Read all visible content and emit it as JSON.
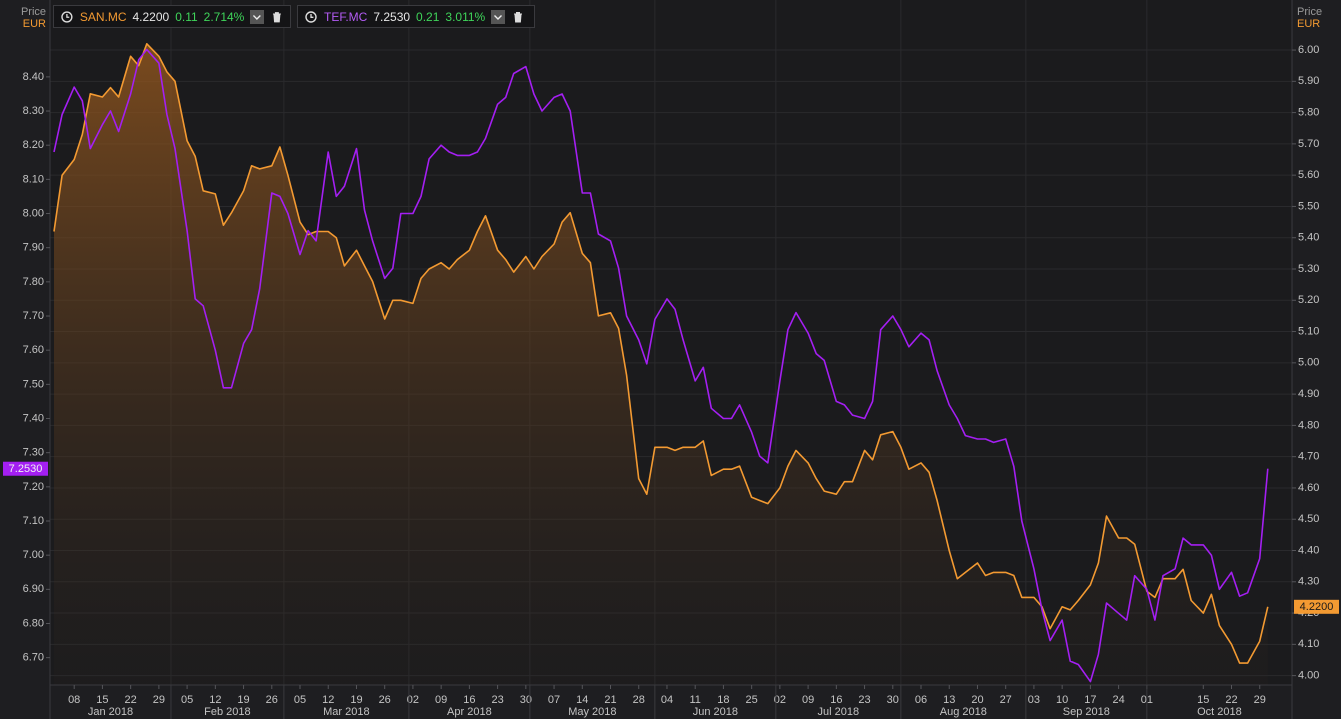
{
  "chart_data": {
    "type": "line",
    "y_label": "Price",
    "y_unit": "EUR",
    "xlim": [
      "2018-01-02",
      "2018-11-06"
    ],
    "ylim": [
      6.62,
      8.625
    ],
    "y2lim": [
      3.97,
      6.16
    ],
    "grid": true,
    "yticks": [
      {
        "value": 6.7,
        "label": "6.70"
      },
      {
        "value": 6.8,
        "label": "6.80"
      },
      {
        "value": 6.9,
        "label": "6.90"
      },
      {
        "value": 7.0,
        "label": "7.00"
      },
      {
        "value": 7.1,
        "label": "7.10"
      },
      {
        "value": 7.2,
        "label": "7.20"
      },
      {
        "value": 7.3,
        "label": "7.30"
      },
      {
        "value": 7.4,
        "label": "7.40"
      },
      {
        "value": 7.5,
        "label": "7.50"
      },
      {
        "value": 7.6,
        "label": "7.60"
      },
      {
        "value": 7.7,
        "label": "7.70"
      },
      {
        "value": 7.8,
        "label": "7.80"
      },
      {
        "value": 7.9,
        "label": "7.90"
      },
      {
        "value": 8.0,
        "label": "8.00"
      },
      {
        "value": 8.1,
        "label": "8.10"
      },
      {
        "value": 8.2,
        "label": "8.20"
      },
      {
        "value": 8.3,
        "label": "8.30"
      },
      {
        "value": 8.4,
        "label": "8.40"
      }
    ],
    "y2ticks": [
      {
        "value": 4.0,
        "label": "4.00"
      },
      {
        "value": 4.1,
        "label": "4.10"
      },
      {
        "value": 4.2,
        "label": "4.20"
      },
      {
        "value": 4.3,
        "label": "4.30"
      },
      {
        "value": 4.4,
        "label": "4.40"
      },
      {
        "value": 4.5,
        "label": "4.50"
      },
      {
        "value": 4.6,
        "label": "4.60"
      },
      {
        "value": 4.7,
        "label": "4.70"
      },
      {
        "value": 4.8,
        "label": "4.80"
      },
      {
        "value": 4.9,
        "label": "4.90"
      },
      {
        "value": 5.0,
        "label": "5.00"
      },
      {
        "value": 5.1,
        "label": "5.10"
      },
      {
        "value": 5.2,
        "label": "5.20"
      },
      {
        "value": 5.3,
        "label": "5.30"
      },
      {
        "value": 5.4,
        "label": "5.40"
      },
      {
        "value": 5.5,
        "label": "5.50"
      },
      {
        "value": 5.6,
        "label": "5.60"
      },
      {
        "value": 5.7,
        "label": "5.70"
      },
      {
        "value": 5.8,
        "label": "5.80"
      },
      {
        "value": 5.9,
        "label": "5.90"
      },
      {
        "value": 6.0,
        "label": "6.00"
      }
    ],
    "xticks": [
      {
        "value": "2018-01-08",
        "label": "08"
      },
      {
        "value": "2018-01-15",
        "label": "15"
      },
      {
        "value": "2018-01-22",
        "label": "22"
      },
      {
        "value": "2018-01-29",
        "label": "29"
      },
      {
        "value": "2018-02-05",
        "label": "05"
      },
      {
        "value": "2018-02-12",
        "label": "12"
      },
      {
        "value": "2018-02-19",
        "label": "19"
      },
      {
        "value": "2018-02-26",
        "label": "26"
      },
      {
        "value": "2018-03-05",
        "label": "05"
      },
      {
        "value": "2018-03-12",
        "label": "12"
      },
      {
        "value": "2018-03-19",
        "label": "19"
      },
      {
        "value": "2018-03-26",
        "label": "26"
      },
      {
        "value": "2018-04-02",
        "label": "02"
      },
      {
        "value": "2018-04-09",
        "label": "09"
      },
      {
        "value": "2018-04-16",
        "label": "16"
      },
      {
        "value": "2018-04-23",
        "label": "23"
      },
      {
        "value": "2018-04-30",
        "label": "30"
      },
      {
        "value": "2018-05-07",
        "label": "07"
      },
      {
        "value": "2018-05-14",
        "label": "14"
      },
      {
        "value": "2018-05-21",
        "label": "21"
      },
      {
        "value": "2018-05-28",
        "label": "28"
      },
      {
        "value": "2018-06-04",
        "label": "04"
      },
      {
        "value": "2018-06-11",
        "label": "11"
      },
      {
        "value": "2018-06-18",
        "label": "18"
      },
      {
        "value": "2018-06-25",
        "label": "25"
      },
      {
        "value": "2018-07-02",
        "label": "02"
      },
      {
        "value": "2018-07-09",
        "label": "09"
      },
      {
        "value": "2018-07-16",
        "label": "16"
      },
      {
        "value": "2018-07-23",
        "label": "23"
      },
      {
        "value": "2018-07-30",
        "label": "30"
      },
      {
        "value": "2018-08-06",
        "label": "06"
      },
      {
        "value": "2018-08-13",
        "label": "13"
      },
      {
        "value": "2018-08-20",
        "label": "20"
      },
      {
        "value": "2018-08-27",
        "label": "27"
      },
      {
        "value": "2018-09-03",
        "label": "03"
      },
      {
        "value": "2018-09-10",
        "label": "10"
      },
      {
        "value": "2018-09-17",
        "label": "17"
      },
      {
        "value": "2018-09-24",
        "label": "24"
      },
      {
        "value": "2018-10-01",
        "label": "01"
      },
      {
        "value": "2018-10-15",
        "label": "15"
      },
      {
        "value": "2018-10-22",
        "label": "22"
      },
      {
        "value": "2018-10-29",
        "label": "29"
      }
    ],
    "months": [
      {
        "value": "2018-01-01",
        "label": "Jan 2018"
      },
      {
        "value": "2018-02-01",
        "label": "Feb 2018"
      },
      {
        "value": "2018-03-01",
        "label": "Mar 2018"
      },
      {
        "value": "2018-04-01",
        "label": "Apr 2018"
      },
      {
        "value": "2018-05-01",
        "label": "May 2018"
      },
      {
        "value": "2018-06-01",
        "label": "Jun 2018"
      },
      {
        "value": "2018-07-01",
        "label": "Jul 2018"
      },
      {
        "value": "2018-08-01",
        "label": "Aug 2018"
      },
      {
        "value": "2018-09-01",
        "label": "Sep 2018"
      },
      {
        "value": "2018-10-01",
        "label": "Oct 2018"
      }
    ],
    "x": [
      "2018-01-03",
      "2018-01-05",
      "2018-01-08",
      "2018-01-10",
      "2018-01-12",
      "2018-01-15",
      "2018-01-17",
      "2018-01-19",
      "2018-01-22",
      "2018-01-24",
      "2018-01-26",
      "2018-01-29",
      "2018-01-31",
      "2018-02-02",
      "2018-02-05",
      "2018-02-07",
      "2018-02-09",
      "2018-02-12",
      "2018-02-14",
      "2018-02-16",
      "2018-02-19",
      "2018-02-21",
      "2018-02-23",
      "2018-02-26",
      "2018-02-28",
      "2018-03-02",
      "2018-03-05",
      "2018-03-07",
      "2018-03-09",
      "2018-03-12",
      "2018-03-14",
      "2018-03-16",
      "2018-03-19",
      "2018-03-21",
      "2018-03-23",
      "2018-03-26",
      "2018-03-28",
      "2018-03-30",
      "2018-04-02",
      "2018-04-04",
      "2018-04-06",
      "2018-04-09",
      "2018-04-11",
      "2018-04-13",
      "2018-04-16",
      "2018-04-18",
      "2018-04-20",
      "2018-04-23",
      "2018-04-25",
      "2018-04-27",
      "2018-04-30",
      "2018-05-02",
      "2018-05-04",
      "2018-05-07",
      "2018-05-09",
      "2018-05-11",
      "2018-05-14",
      "2018-05-16",
      "2018-05-18",
      "2018-05-21",
      "2018-05-23",
      "2018-05-25",
      "2018-05-28",
      "2018-05-30",
      "2018-06-01",
      "2018-06-04",
      "2018-06-06",
      "2018-06-08",
      "2018-06-11",
      "2018-06-13",
      "2018-06-15",
      "2018-06-18",
      "2018-06-20",
      "2018-06-22",
      "2018-06-25",
      "2018-06-27",
      "2018-06-29",
      "2018-07-02",
      "2018-07-04",
      "2018-07-06",
      "2018-07-09",
      "2018-07-11",
      "2018-07-13",
      "2018-07-16",
      "2018-07-18",
      "2018-07-20",
      "2018-07-23",
      "2018-07-25",
      "2018-07-27",
      "2018-07-30",
      "2018-08-01",
      "2018-08-03",
      "2018-08-06",
      "2018-08-08",
      "2018-08-10",
      "2018-08-13",
      "2018-08-15",
      "2018-08-17",
      "2018-08-20",
      "2018-08-22",
      "2018-08-24",
      "2018-08-27",
      "2018-08-29",
      "2018-08-31",
      "2018-09-03",
      "2018-09-05",
      "2018-09-07",
      "2018-09-10",
      "2018-09-12",
      "2018-09-14",
      "2018-09-17",
      "2018-09-19",
      "2018-09-21",
      "2018-09-24",
      "2018-09-26",
      "2018-09-28",
      "2018-10-01",
      "2018-10-03",
      "2018-10-05",
      "2018-10-08",
      "2018-10-10",
      "2018-10-12",
      "2018-10-15",
      "2018-10-17",
      "2018-10-19",
      "2018-10-22",
      "2018-10-24",
      "2018-10-26",
      "2018-10-29",
      "2018-10-31"
    ],
    "series": [
      {
        "name": "SAN.MC",
        "color": "#f39a32",
        "axis": "y2",
        "fill": true,
        "quote": {
          "price": "4.2200",
          "change": "0.11",
          "change_pct": "2.714%"
        },
        "values": [
          5.42,
          5.6,
          5.65,
          5.73,
          5.86,
          5.85,
          5.88,
          5.85,
          5.98,
          5.95,
          6.02,
          5.98,
          5.93,
          5.9,
          5.71,
          5.66,
          5.55,
          5.54,
          5.44,
          5.48,
          5.55,
          5.63,
          5.62,
          5.63,
          5.69,
          5.6,
          5.45,
          5.41,
          5.42,
          5.42,
          5.4,
          5.31,
          5.36,
          5.31,
          5.26,
          5.14,
          5.2,
          5.2,
          5.19,
          5.27,
          5.3,
          5.32,
          5.3,
          5.33,
          5.36,
          5.42,
          5.47,
          5.36,
          5.33,
          5.29,
          5.34,
          5.3,
          5.34,
          5.38,
          5.45,
          5.48,
          5.35,
          5.32,
          5.15,
          5.16,
          5.11,
          4.96,
          4.63,
          4.58,
          4.73,
          4.73,
          4.72,
          4.73,
          4.73,
          4.75,
          4.64,
          4.66,
          4.66,
          4.67,
          4.57,
          4.56,
          4.55,
          4.6,
          4.67,
          4.72,
          4.68,
          4.63,
          4.59,
          4.58,
          4.62,
          4.62,
          4.72,
          4.69,
          4.77,
          4.78,
          4.73,
          4.66,
          4.68,
          4.65,
          4.56,
          4.4,
          4.31,
          4.33,
          4.36,
          4.32,
          4.33,
          4.33,
          4.32,
          4.25,
          4.25,
          4.22,
          4.15,
          4.22,
          4.21,
          4.24,
          4.29,
          4.36,
          4.51,
          4.44,
          4.44,
          4.42,
          4.27,
          4.25,
          4.31,
          4.31,
          4.34,
          4.24,
          4.2,
          4.26,
          4.16,
          4.1,
          4.04,
          4.04,
          4.11,
          4.22
        ]
      },
      {
        "name": "TEF.MC",
        "color": "#a41ff2",
        "axis": "y",
        "fill": false,
        "quote": {
          "price": "7.2530",
          "change": "0.21",
          "change_pct": "3.011%"
        },
        "values": [
          8.18,
          8.29,
          8.37,
          8.33,
          8.19,
          8.26,
          8.3,
          8.24,
          8.35,
          8.45,
          8.48,
          8.44,
          8.29,
          8.19,
          7.95,
          7.75,
          7.73,
          7.6,
          7.49,
          7.49,
          7.62,
          7.66,
          7.78,
          8.06,
          8.05,
          8.0,
          7.88,
          7.95,
          7.92,
          8.18,
          8.05,
          8.08,
          8.19,
          8.01,
          7.92,
          7.81,
          7.84,
          8.0,
          8.0,
          8.05,
          8.16,
          8.2,
          8.18,
          8.17,
          8.17,
          8.18,
          8.22,
          8.32,
          8.34,
          8.41,
          8.43,
          8.35,
          8.3,
          8.34,
          8.35,
          8.3,
          8.06,
          8.06,
          7.94,
          7.92,
          7.84,
          7.7,
          7.63,
          7.56,
          7.69,
          7.75,
          7.72,
          7.63,
          7.51,
          7.55,
          7.43,
          7.4,
          7.4,
          7.44,
          7.36,
          7.29,
          7.27,
          7.51,
          7.66,
          7.71,
          7.65,
          7.59,
          7.57,
          7.45,
          7.44,
          7.41,
          7.4,
          7.45,
          7.66,
          7.7,
          7.66,
          7.61,
          7.65,
          7.63,
          7.54,
          7.44,
          7.4,
          7.35,
          7.34,
          7.34,
          7.33,
          7.34,
          7.26,
          7.1,
          6.96,
          6.84,
          6.75,
          6.81,
          6.69,
          6.68,
          6.63,
          6.71,
          6.86,
          6.83,
          6.81,
          6.94,
          6.9,
          6.81,
          6.94,
          6.96,
          7.05,
          7.03,
          7.03,
          7.0,
          6.9,
          6.95,
          6.88,
          6.89,
          6.99,
          7.253
        ]
      }
    ]
  }
}
